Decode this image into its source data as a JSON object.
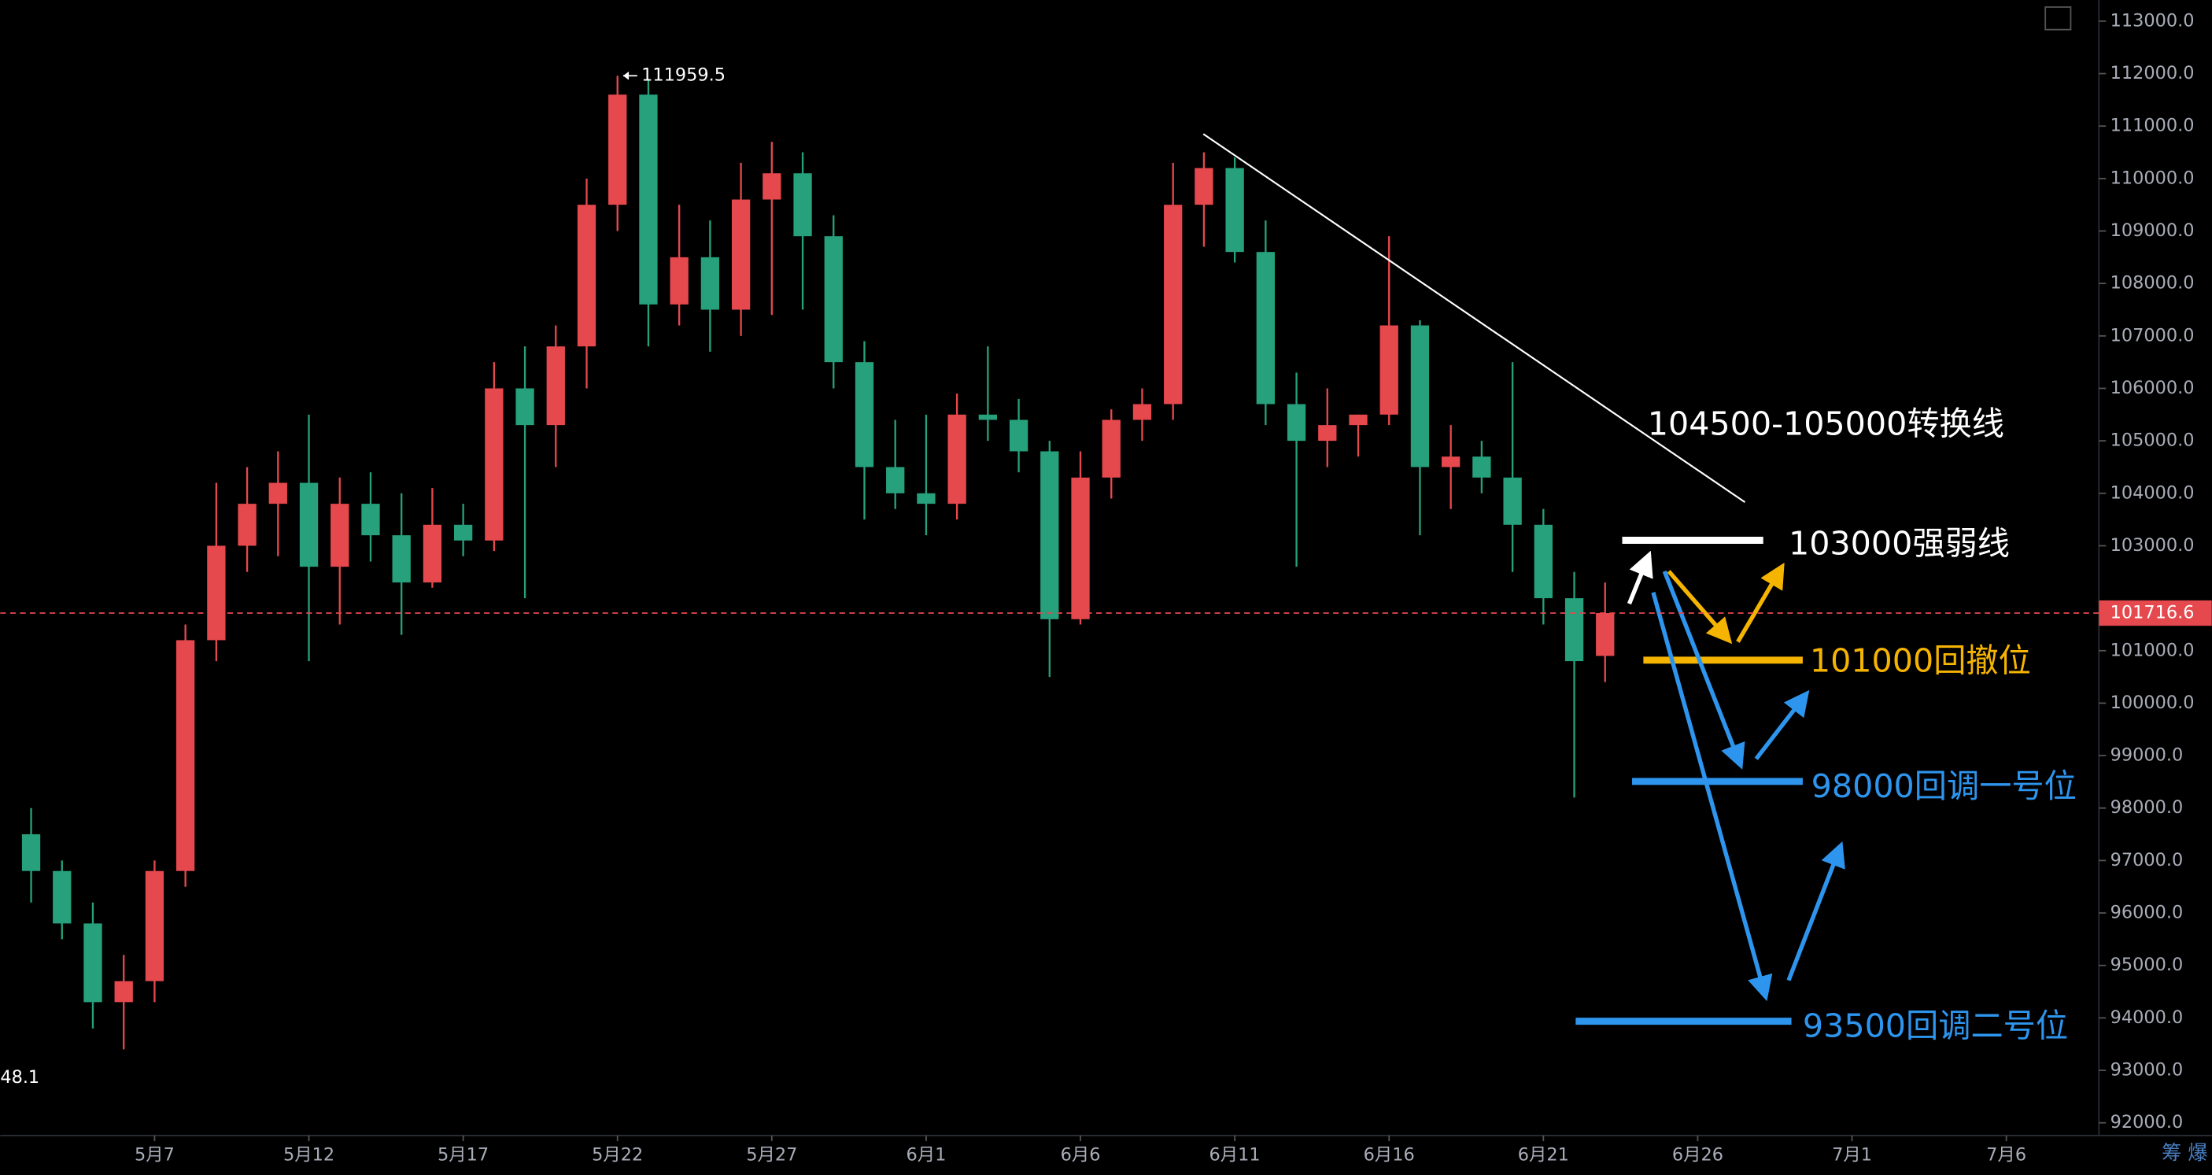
{
  "chart_data": {
    "type": "candlestick",
    "x": [
      "5月3",
      "5月4",
      "5月5",
      "5月6",
      "5月7",
      "5月8",
      "5月9",
      "5月10",
      "5月11",
      "5月12",
      "5月13",
      "5月14",
      "5月15",
      "5月16",
      "5月17",
      "5月18",
      "5月19",
      "5月20",
      "5月21",
      "5月22",
      "5月23",
      "5月24",
      "5月25",
      "5月26",
      "5月27",
      "5月28",
      "5月29",
      "5月30",
      "5月31",
      "6月1",
      "6月2",
      "6月3",
      "6月4",
      "6月5",
      "6月6",
      "6月7",
      "6月8",
      "6月9",
      "6月10",
      "6月11",
      "6月12",
      "6月13",
      "6月14",
      "6月15",
      "6月16",
      "6月17",
      "6月18",
      "6月19",
      "6月20",
      "6月21",
      "6月22",
      "6月23"
    ],
    "open": [
      97500,
      96800,
      95800,
      94300,
      94700,
      96800,
      101200,
      103000,
      103800,
      104200,
      102600,
      103800,
      103200,
      102300,
      103400,
      103100,
      106000,
      105300,
      106800,
      109500,
      111600,
      107600,
      108500,
      107500,
      109600,
      110100,
      108900,
      106500,
      104500,
      104000,
      103800,
      105500,
      105400,
      104800,
      101600,
      104300,
      105400,
      105700,
      109500,
      110200,
      108600,
      105700,
      105000,
      105300,
      105500,
      107200,
      104500,
      104700,
      104300,
      103400,
      102000,
      100900
    ],
    "high": [
      98000,
      97000,
      96200,
      95200,
      97000,
      101500,
      104200,
      104500,
      104800,
      105500,
      104300,
      104400,
      104000,
      104100,
      103800,
      106500,
      106800,
      107200,
      110000,
      111959.5,
      111900,
      109500,
      109200,
      110300,
      110700,
      110500,
      109300,
      106900,
      105400,
      105500,
      105900,
      106800,
      105800,
      105000,
      104800,
      105600,
      106000,
      110300,
      110500,
      110400,
      109200,
      106300,
      106000,
      105500,
      108900,
      107300,
      105300,
      105000,
      106500,
      103700,
      102500,
      102300
    ],
    "low": [
      96200,
      95500,
      93800,
      93400,
      94300,
      96500,
      100800,
      102500,
      102800,
      100800,
      101500,
      102700,
      101300,
      102200,
      102800,
      102900,
      102000,
      104500,
      106000,
      109000,
      106800,
      107200,
      106700,
      107000,
      107400,
      107500,
      106000,
      103500,
      103700,
      103200,
      103500,
      105000,
      104400,
      100500,
      101500,
      103900,
      105000,
      105400,
      108700,
      108400,
      105300,
      102600,
      104500,
      104700,
      105300,
      103200,
      103700,
      104000,
      102500,
      101500,
      98200,
      100400
    ],
    "close": [
      96800,
      95800,
      94300,
      94700,
      96800,
      101200,
      103000,
      103800,
      104200,
      102600,
      103800,
      103200,
      102300,
      103400,
      103100,
      106000,
      105300,
      106800,
      109500,
      111600,
      107600,
      108500,
      107500,
      109600,
      110100,
      108900,
      106500,
      104500,
      104000,
      103800,
      105500,
      105400,
      104800,
      101600,
      104300,
      105400,
      105700,
      109500,
      110200,
      108600,
      105700,
      105000,
      105300,
      105500,
      107200,
      104500,
      104700,
      104300,
      103400,
      102000,
      100800,
      101716.6
    ],
    "up_color": "#e5484d",
    "down_color": "#26a17b",
    "xlim": [
      "5月2",
      "7月9"
    ],
    "xticks": [
      "5月7",
      "5月12",
      "5月17",
      "5月22",
      "5月27",
      "6月1",
      "6月6",
      "6月11",
      "6月16",
      "6月21",
      "6月26",
      "7月1",
      "7月6"
    ],
    "ylim": [
      92000,
      113000
    ],
    "yticks": [
      {
        "value": 113000,
        "label": "113000.0"
      },
      {
        "value": 112000,
        "label": "112000.0"
      },
      {
        "value": 111000,
        "label": "111000.0"
      },
      {
        "value": 110000,
        "label": "110000.0"
      },
      {
        "value": 109000,
        "label": "109000.0"
      },
      {
        "value": 108000,
        "label": "108000.0"
      },
      {
        "value": 107000,
        "label": "107000.0"
      },
      {
        "value": 106000,
        "label": "106000.0"
      },
      {
        "value": 105000,
        "label": "105000.0"
      },
      {
        "value": 104000,
        "label": "104000.0"
      },
      {
        "value": 103000,
        "label": "103000.0"
      },
      {
        "value": 101000,
        "label": "101000.0"
      },
      {
        "value": 100000,
        "label": "100000.0"
      },
      {
        "value": 99000,
        "label": "99000.0"
      },
      {
        "value": 98000,
        "label": "98000.0"
      },
      {
        "value": 97000,
        "label": "97000.0"
      },
      {
        "value": 96000,
        "label": "96000.0"
      },
      {
        "value": 95000,
        "label": "95000.0"
      },
      {
        "value": 94000,
        "label": "94000.0"
      },
      {
        "value": 93000,
        "label": "93000.0"
      },
      {
        "value": 92000,
        "label": "92000.0"
      }
    ],
    "high_marker": 111959.5,
    "low_marker_label": "48.1",
    "last_price": 101716.6,
    "annotations": [
      {
        "text": "104500-105000转换线",
        "color": "#ffffff"
      },
      {
        "text": "103000强弱线",
        "color": "#ffffff"
      },
      {
        "text": "101000回撤位",
        "color": "#f5b400"
      },
      {
        "text": "98000回调一号位",
        "color": "#2e95ee"
      },
      {
        "text": "93500回调二号位",
        "color": "#2e95ee"
      }
    ],
    "watermark": "筹 爆"
  }
}
